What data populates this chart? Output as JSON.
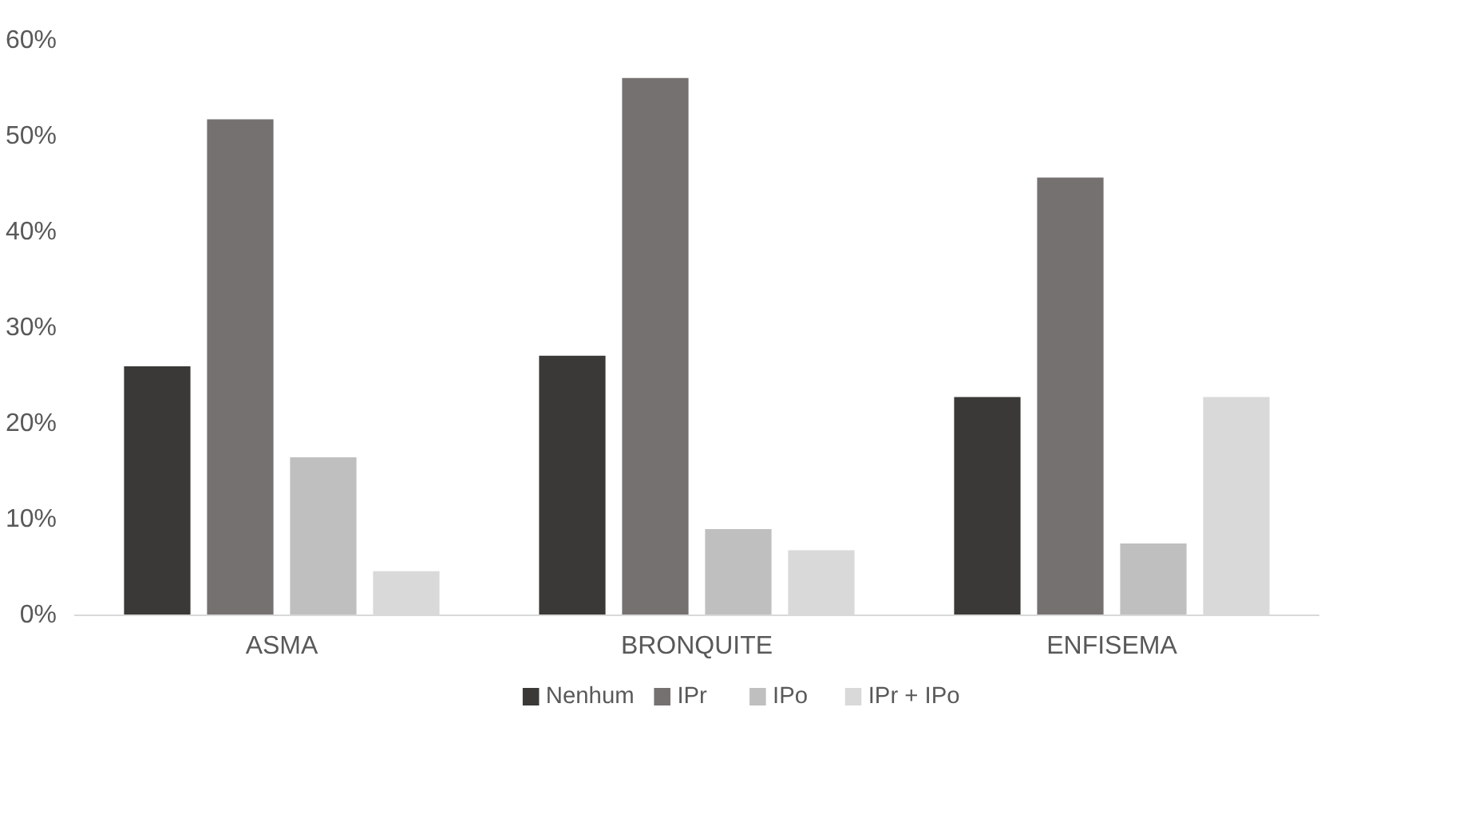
{
  "chart_data": {
    "type": "bar",
    "categories": [
      "ASMA",
      "BRONQUITE",
      "ENFISEMA"
    ],
    "series": [
      {
        "name": "Nenhum",
        "color": "#3a3937",
        "values": [
          26.0,
          27.1,
          22.8
        ]
      },
      {
        "name": "IPr",
        "color": "#757171",
        "values": [
          51.8,
          56.1,
          45.7
        ]
      },
      {
        "name": "IPo",
        "color": "#bfbfbf",
        "values": [
          16.5,
          9.0,
          7.5
        ]
      },
      {
        "name": "IPr + IPo",
        "color": "#d9d9d9",
        "values": [
          4.6,
          6.8,
          22.8
        ]
      }
    ],
    "ylim": [
      0,
      60
    ],
    "yticks": [
      {
        "value": 0,
        "label": "0%"
      },
      {
        "value": 10,
        "label": "10%"
      },
      {
        "value": 20,
        "label": "20%"
      },
      {
        "value": 30,
        "label": "30%"
      },
      {
        "value": 40,
        "label": "40%"
      },
      {
        "value": 50,
        "label": "50%"
      },
      {
        "value": 60,
        "label": "60%"
      }
    ],
    "grid": false,
    "legend": "bottom"
  }
}
